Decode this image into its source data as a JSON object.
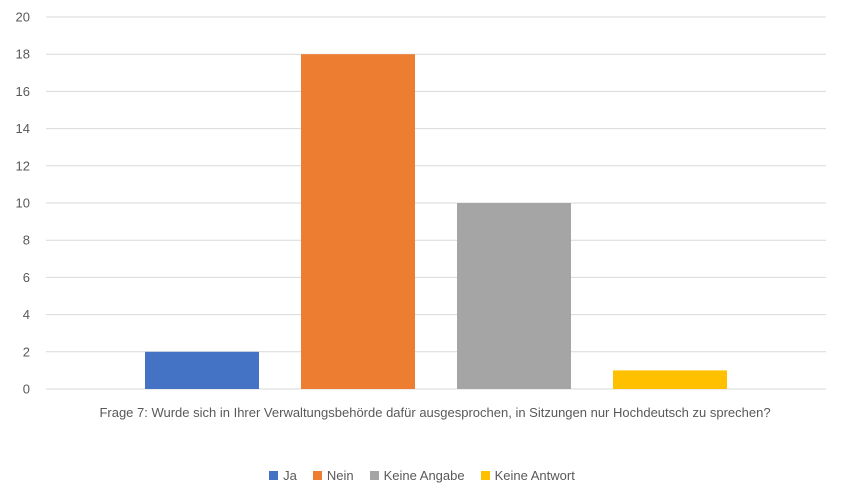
{
  "chart_data": {
    "type": "bar",
    "categories": [
      "Ja",
      "Nein",
      "Keine Angabe",
      "Keine Antwort"
    ],
    "values": [
      2,
      18,
      10,
      1
    ],
    "colors": [
      "#4472C4",
      "#ED7D31",
      "#A5A5A5",
      "#FFC000"
    ],
    "title": "",
    "xlabel": "Frage 7: Wurde sich in Ihrer Verwaltungsbehörde dafür ausgesprochen, in Sitzungen nur Hochdeutsch zu sprechen?",
    "ylabel": "",
    "ylim": [
      0,
      20
    ],
    "yticks": [
      "0",
      "2",
      "4",
      "6",
      "8",
      "10",
      "12",
      "14",
      "16",
      "18",
      "20"
    ],
    "grid": true,
    "legend_position": "bottom",
    "gridline_color": "#D9D9D9"
  }
}
